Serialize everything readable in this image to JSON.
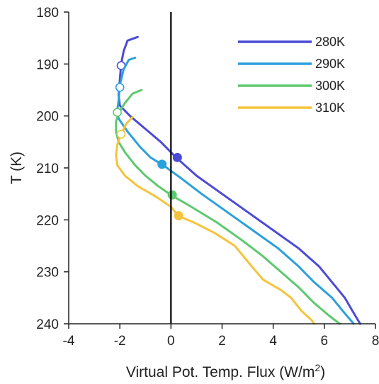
{
  "chart_data": {
    "type": "line",
    "title": "",
    "xlabel": "Virtual Pot. Temp. Flux (W/m",
    "xlabel_superscript": "2",
    "xlabel_suffix": ")",
    "ylabel": "T (K)",
    "xlim": [
      -4,
      8
    ],
    "ylim": [
      240,
      180
    ],
    "y_inverted": true,
    "xticks": [
      -4,
      -2,
      0,
      2,
      4,
      6,
      8
    ],
    "yticks": [
      180,
      190,
      200,
      210,
      220,
      230,
      240
    ],
    "grid": false,
    "legend": "top-right",
    "zero_line": {
      "x": 0,
      "color": "#000000"
    },
    "series": [
      {
        "name": "280K",
        "color": "#4B4BD6",
        "points": [
          [
            -1.3,
            184.8
          ],
          [
            -1.7,
            185.5
          ],
          [
            -1.85,
            187.5
          ],
          [
            -1.95,
            190
          ],
          [
            -2.0,
            193
          ],
          [
            -2.05,
            196
          ],
          [
            -2.0,
            198
          ],
          [
            -1.6,
            200
          ],
          [
            -1.0,
            202.5
          ],
          [
            -0.4,
            205
          ],
          [
            0.2,
            208
          ],
          [
            1.0,
            211.5
          ],
          [
            2.0,
            215
          ],
          [
            3.0,
            218.5
          ],
          [
            4.0,
            222
          ],
          [
            5.0,
            225.5
          ],
          [
            5.8,
            229
          ],
          [
            6.3,
            232
          ],
          [
            6.8,
            235
          ],
          [
            7.1,
            237.5
          ],
          [
            7.4,
            240
          ]
        ],
        "open_marker": [
          -1.95,
          190.3
        ],
        "filled_marker": [
          0.25,
          208
        ]
      },
      {
        "name": "290K",
        "color": "#2BA0DC",
        "points": [
          [
            -1.4,
            188.8
          ],
          [
            -1.65,
            189.2
          ],
          [
            -1.85,
            191
          ],
          [
            -2.0,
            194
          ],
          [
            -2.05,
            197
          ],
          [
            -2.1,
            199
          ],
          [
            -2.05,
            200.5
          ],
          [
            -1.7,
            203
          ],
          [
            -1.2,
            206
          ],
          [
            -0.8,
            208
          ],
          [
            -0.3,
            209.5
          ],
          [
            0.4,
            212
          ],
          [
            1.2,
            215
          ],
          [
            2.2,
            218.5
          ],
          [
            3.2,
            222
          ],
          [
            4.2,
            225.5
          ],
          [
            5.0,
            229
          ],
          [
            5.6,
            232
          ],
          [
            6.3,
            235
          ],
          [
            6.8,
            238
          ],
          [
            7.15,
            240
          ]
        ],
        "open_marker": [
          -2.0,
          194.5
        ],
        "filled_marker": [
          -0.35,
          209.3
        ]
      },
      {
        "name": "300K",
        "color": "#5DC96E",
        "points": [
          [
            -1.15,
            195
          ],
          [
            -1.5,
            195.7
          ],
          [
            -1.8,
            197.5
          ],
          [
            -2.0,
            199
          ],
          [
            -2.15,
            201
          ],
          [
            -2.15,
            203
          ],
          [
            -2.05,
            205
          ],
          [
            -1.8,
            207
          ],
          [
            -1.4,
            209.5
          ],
          [
            -1.0,
            211.5
          ],
          [
            -0.5,
            213.5
          ],
          [
            0.0,
            215.2
          ],
          [
            0.8,
            217.5
          ],
          [
            1.8,
            220.5
          ],
          [
            2.8,
            224
          ],
          [
            3.6,
            227
          ],
          [
            4.3,
            230
          ],
          [
            5.0,
            233
          ],
          [
            5.6,
            236
          ],
          [
            6.2,
            238.5
          ],
          [
            6.6,
            240
          ]
        ],
        "open_marker": [
          -2.1,
          199.3
        ],
        "filled_marker": [
          0.05,
          215.2
        ]
      },
      {
        "name": "310K",
        "color": "#F5C43C",
        "points": [
          [
            -1.5,
            200.2
          ],
          [
            -1.75,
            201.5
          ],
          [
            -1.95,
            203.5
          ],
          [
            -2.1,
            205.5
          ],
          [
            -2.15,
            207.5
          ],
          [
            -2.1,
            209.5
          ],
          [
            -1.8,
            211.5
          ],
          [
            -1.3,
            213.5
          ],
          [
            -0.6,
            215.5
          ],
          [
            0.0,
            217.5
          ],
          [
            0.3,
            219.3
          ],
          [
            0.9,
            220.5
          ],
          [
            1.7,
            222.5
          ],
          [
            2.5,
            225
          ],
          [
            3.0,
            228
          ],
          [
            3.6,
            231.5
          ],
          [
            4.3,
            233.5
          ],
          [
            4.7,
            235
          ],
          [
            5.1,
            237.5
          ],
          [
            5.5,
            239.3
          ],
          [
            5.6,
            240
          ]
        ],
        "open_marker": [
          -1.95,
          203.5
        ],
        "filled_marker": [
          0.3,
          219.2
        ]
      }
    ]
  }
}
